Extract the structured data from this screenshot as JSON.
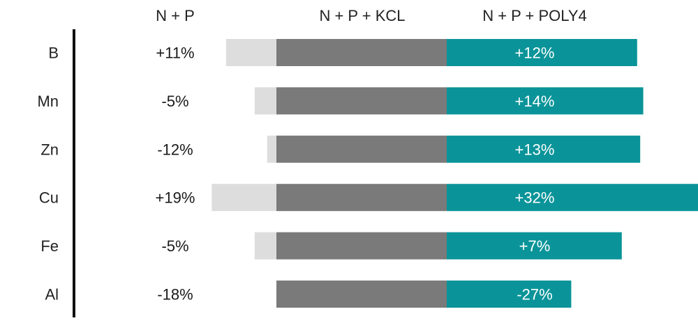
{
  "chart_data": {
    "type": "bar",
    "title": "",
    "xlabel": "",
    "ylabel": "",
    "categories": [
      "B",
      "Mn",
      "Zn",
      "Cu",
      "Fe",
      "Al"
    ],
    "series": [
      {
        "name": "N + P",
        "values": [
          11,
          -5,
          -12,
          19,
          -5,
          -18
        ],
        "labels": [
          "+11%",
          "-5%",
          "-12%",
          "+19%",
          "-5%",
          "-18%"
        ],
        "color": "#dcdddc"
      },
      {
        "name": "N + P + KCL",
        "values": [
          0,
          0,
          0,
          0,
          0,
          0
        ],
        "labels": [
          "",
          "",
          "",
          "",
          "",
          ""
        ],
        "color": "#7b7a7b"
      },
      {
        "name": "N + P + POLY4",
        "values": [
          12,
          14,
          13,
          32,
          7,
          -27
        ],
        "labels": [
          "+12%",
          "+14%",
          "+13%",
          "+32%",
          "+7%",
          "-27%"
        ],
        "color": "#0a9499"
      }
    ],
    "legend": "top",
    "grid": false
  }
}
